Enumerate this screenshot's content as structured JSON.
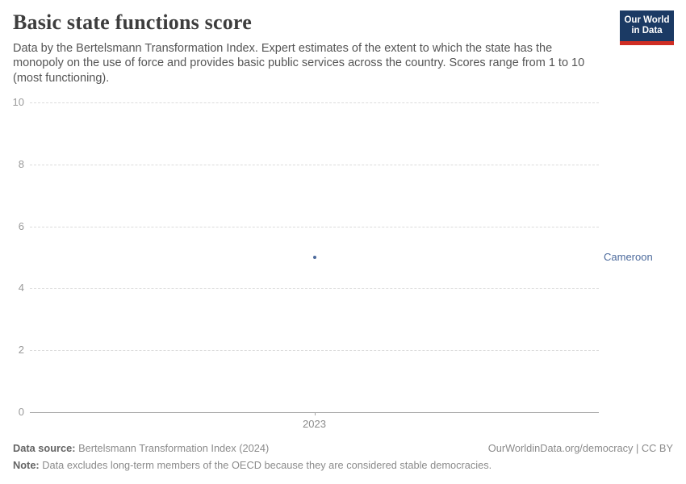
{
  "logo": {
    "line1": "Our World",
    "line2": "in Data"
  },
  "header": {
    "title": "Basic state functions score",
    "subtitle": "Data by the Bertelsmann Transformation Index. Expert estimates of the extent to which the state has the monopoly on the use of force and provides basic public services across the country. Scores range from 1 to 10 (most functioning)."
  },
  "chart_data": {
    "type": "scatter",
    "title": "Basic state functions score",
    "x": [
      2023
    ],
    "x_ticks": [
      "2023"
    ],
    "y_ticks": [
      0,
      2,
      4,
      6,
      8,
      10
    ],
    "ylim": [
      0,
      10
    ],
    "grid": "horizontal-dashed",
    "legend_position": "right-of-point",
    "series": [
      {
        "name": "Cameroon",
        "values": [
          5.0
        ],
        "color": "#4c6a9c"
      }
    ]
  },
  "footer": {
    "source_label": "Data source:",
    "source_text": " Bertelsmann Transformation Index (2024)",
    "credit": "OurWorldinData.org/democracy | CC BY",
    "note_label": "Note:",
    "note_text": " Data excludes long-term members of the OECD because they are considered stable democracies."
  },
  "colors": {
    "accent_blue": "#4c6a9c",
    "logo_navy": "#1b3a64",
    "logo_red": "#cf2d24",
    "gridline": "#dcdcdc",
    "axis": "#a5a5a5"
  }
}
